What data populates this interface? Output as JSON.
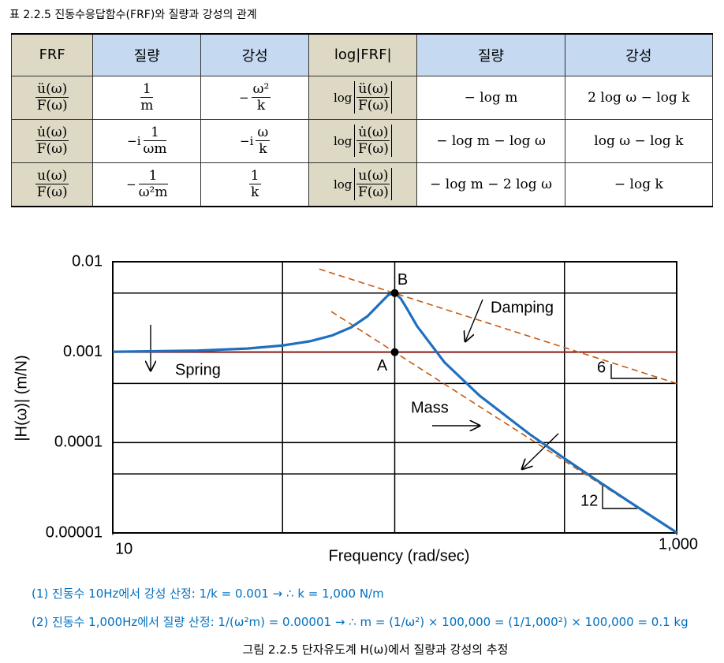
{
  "table_caption": "표 2.2.5 진동수응답함수(FRF)와 질량과 강성의 관계",
  "table": {
    "header": [
      "FRF",
      "질량",
      "강성",
      "log|FRF|",
      "질량",
      "강성"
    ],
    "rows": [
      [
        {
          "num": "ü(ω)",
          "den": "F(ω)"
        },
        {
          "num": "1",
          "den": "m"
        },
        {
          "pre": "−",
          "num": "ω²",
          "den": "k"
        },
        {
          "pre": "log",
          "num": "ü(ω)",
          "den": "F(ω)",
          "abs": true
        },
        "− log m",
        "2 log ω − log k"
      ],
      [
        {
          "num": "u̇(ω)",
          "den": "F(ω)"
        },
        {
          "pre": "−i",
          "num": "1",
          "den": "ωm"
        },
        {
          "pre": "−i",
          "num": "ω",
          "den": "k"
        },
        {
          "pre": "log",
          "num": "u̇(ω)",
          "den": "F(ω)",
          "abs": true
        },
        "− log m − log ω",
        "log ω − log k"
      ],
      [
        {
          "num": "u(ω)",
          "den": "F(ω)"
        },
        {
          "pre": "−",
          "num": "1",
          "den": "ω²m"
        },
        {
          "num": "1",
          "den": "k"
        },
        {
          "pre": "log",
          "num": "u(ω)",
          "den": "F(ω)",
          "abs": true
        },
        "− log m − 2 log ω",
        "− log k"
      ]
    ]
  },
  "chart_data": {
    "type": "line",
    "xlabel": "Frequency (rad/sec)",
    "ylabel": "|H(ω)| (m/N)",
    "xscale": "log",
    "yscale": "log",
    "xlim": [
      10,
      1000
    ],
    "ylim": [
      1e-05,
      0.01
    ],
    "xticks": [
      10,
      {
        "value": 1000,
        "label": "1,000"
      }
    ],
    "yticks": [
      0.01,
      0.001,
      0.0001,
      1e-05
    ],
    "xgrid": [
      40,
      100,
      400
    ],
    "ygrid": [
      0.0045,
      0.00045,
      4.5e-05
    ],
    "series": [
      {
        "color": "#1f6fbf",
        "x": [
          10,
          20,
          30,
          40,
          50,
          60,
          70,
          80,
          90,
          95,
          100,
          105,
          110,
          120,
          150,
          200,
          300,
          400,
          500,
          700,
          1000
        ],
        "values": [
          0.00101,
          0.00104,
          0.001096,
          0.001184,
          0.001319,
          0.00153,
          0.001876,
          0.00249,
          0.00363,
          0.0043,
          0.0045,
          0.00393,
          0.0031,
          0.00194,
          0.000773,
          0.00033,
          0.0001246,
          6.66e-05,
          4.16e-05,
          2.082e-05,
          1.01e-05
        ]
      }
    ],
    "asymptotes": [
      {
        "color": "#8b1a1a",
        "dashed": false,
        "x": [
          10,
          1000
        ],
        "values": [
          0.001,
          0.001
        ]
      },
      {
        "color": "#c55a11",
        "dashed": true,
        "x": [
          54,
          1000
        ],
        "values": [
          0.0083,
          0.00045
        ]
      },
      {
        "color": "#c55a11",
        "dashed": true,
        "x": [
          59.6,
          1000
        ],
        "values": [
          0.00281,
          1e-05
        ]
      }
    ],
    "points": [
      {
        "label": "A",
        "x": 100,
        "y": 0.001
      },
      {
        "label": "B",
        "x": 100,
        "y": 0.0045
      }
    ],
    "annotations": [
      "Spring",
      "Damping",
      "Mass",
      "6",
      "12"
    ]
  },
  "notes": [
    "(1) 진동수 10Hz에서 강성 산정: 1/k = 0.001 → ∴ k = 1,000 N/m",
    "(2) 진동수 1,000Hz에서 질량 산정: 1/(ω²m) = 0.00001 → ∴ m = (1/ω²) × 100,000 = (1/1,000²) × 100,000 = 0.1 kg"
  ],
  "figure_caption": "그림 2.2.5 단자유도계 H(ω)에서 질량과 강성의 추정"
}
